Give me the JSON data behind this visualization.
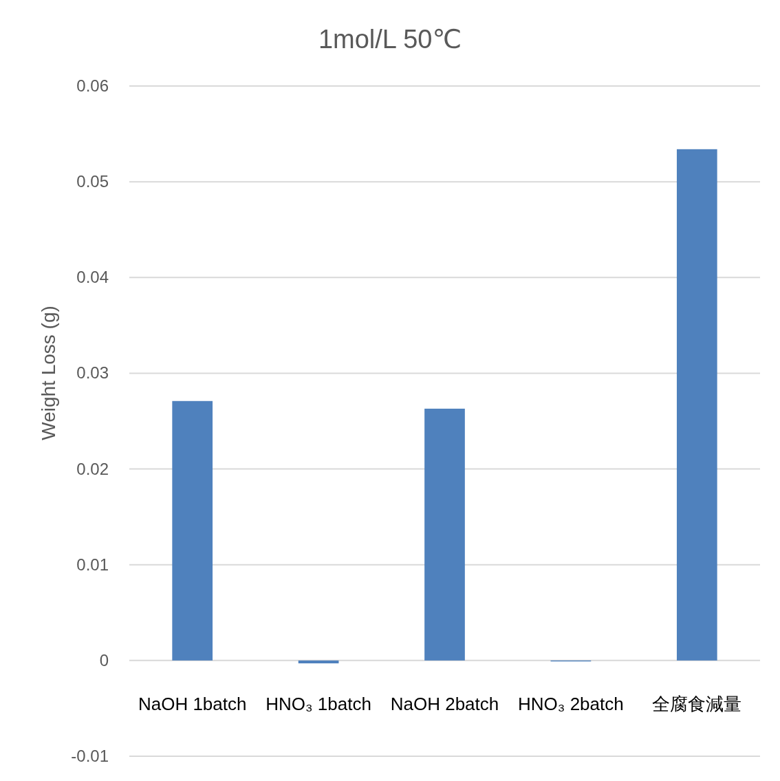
{
  "chart_data": {
    "type": "bar",
    "title": "1mol/L 50℃",
    "ylabel": "Weight Loss (g)",
    "categories": [
      "NaOH 1batch",
      "HNO₃ 1batch",
      "NaOH 2batch",
      "HNO₃ 2batch",
      "全腐食減量"
    ],
    "values": [
      0.0271,
      -0.0003,
      0.0263,
      -0.0001,
      0.0534
    ],
    "color": "#4f81bd",
    "ylim": [
      -0.01,
      0.06
    ],
    "yticks": [
      -0.01,
      0,
      0.01,
      0.02,
      0.03,
      0.04,
      0.05,
      0.06
    ],
    "grid": "y"
  }
}
